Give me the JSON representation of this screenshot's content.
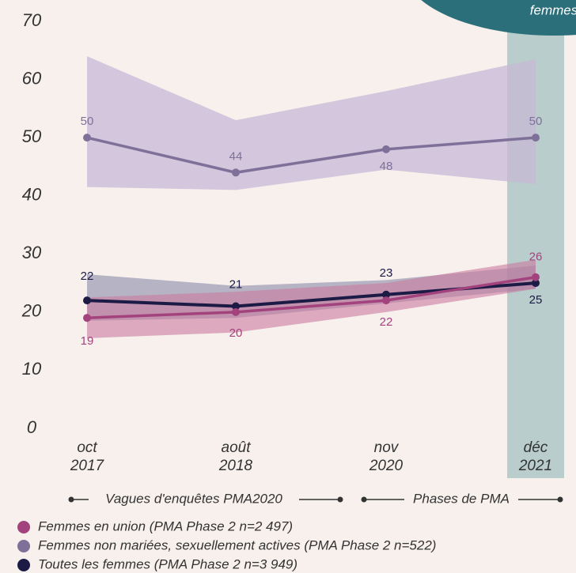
{
  "chart_data": {
    "type": "line",
    "corner_label": "femmes",
    "categories": [
      [
        "oct",
        "2017"
      ],
      [
        "août",
        "2018"
      ],
      [
        "nov",
        "2020"
      ],
      [
        "déc",
        "2021"
      ]
    ],
    "ylim": [
      0,
      70
    ],
    "yticks": [
      0,
      10,
      20,
      30,
      40,
      50,
      60,
      70
    ],
    "highlight_category": 3,
    "highlight_color": "#b9cdcc",
    "phase_labels": [
      "Vagues d'enquêtes PMA2020",
      "Phases de PMA"
    ],
    "series": [
      {
        "name": "Femmes non mariées, sexuellement actives (PMA Phase 2 n=522)",
        "color": "#7e7099",
        "band_color": "#c8b8d6",
        "values": [
          50,
          44,
          48,
          50
        ],
        "lower": [
          41.5,
          41,
          44.5,
          42
        ],
        "upper": [
          64,
          53,
          58,
          63.5
        ]
      },
      {
        "name": "Toutes les femmes (PMA Phase 2 n=3 949)",
        "color": "#1c1b45",
        "band_color": "#8a8aa8",
        "values": [
          22,
          21,
          23,
          25
        ],
        "lower": [
          18.5,
          19,
          21.5,
          24
        ],
        "upper": [
          26.5,
          24.5,
          25.5,
          28
        ]
      },
      {
        "name": "Femmes en union (PMA Phase 2 n=2 497)",
        "color": "#a3437d",
        "band_color": "#c9799f",
        "values": [
          19,
          20,
          22,
          26
        ],
        "lower": [
          15.5,
          16.5,
          20,
          24
        ],
        "upper": [
          22.5,
          23.5,
          25,
          29
        ]
      }
    ],
    "legend_order": [
      2,
      0,
      1
    ]
  }
}
